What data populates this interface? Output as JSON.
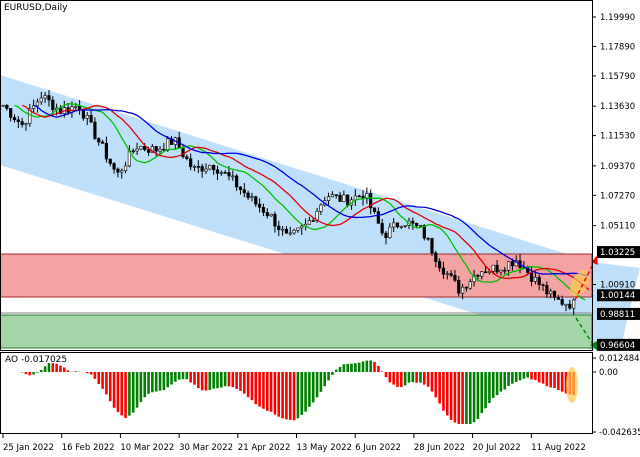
{
  "symbol_title": "EURUSD,Daily",
  "indicator_label": "AO -0.017025",
  "price_axis": [
    "1.19990",
    "1.17890",
    "1.15790",
    "1.13630",
    "1.11530",
    "1.09370",
    "1.07270",
    "1.05110",
    "1.00910"
  ],
  "price_labels": {
    "upper_zone": "1.03225",
    "mid": "1.00144",
    "current": "0.98811",
    "lower_zone": "0.96604"
  },
  "ao_axis": [
    "0.012484",
    "0.00",
    "-0.042635"
  ],
  "date_axis": [
    "25 Jan 2022",
    "16 Feb 2022",
    "10 Mar 2022",
    "30 Mar 2022",
    "21 Apr 2022",
    "13 May 2022",
    "6 Jun 2022",
    "28 Jun 2022",
    "20 Jul 2022",
    "11 Aug 2022"
  ],
  "colors": {
    "channel": "#bfe0fb",
    "resistance_zone": "#f4a3a3",
    "support_zone": "#a5d6a7",
    "ma_fast": "#00c000",
    "ma_mid": "#e00000",
    "ma_slow": "#0000e0",
    "ao_up": "#008000",
    "ao_down": "#ff0000"
  },
  "chart_data": {
    "type": "candlestick",
    "weekly_closes": [
      1.137,
      1.123,
      1.144,
      1.133,
      1.137,
      1.112,
      1.087,
      1.108,
      1.105,
      1.112,
      1.091,
      1.095,
      1.084,
      1.07,
      1.059,
      1.041,
      1.052,
      1.073,
      1.069,
      1.074,
      1.044,
      1.055,
      1.048,
      1.023,
      1.005,
      1.019,
      1.021,
      1.027,
      1.012,
      0.998,
      0.995
    ]
  }
}
